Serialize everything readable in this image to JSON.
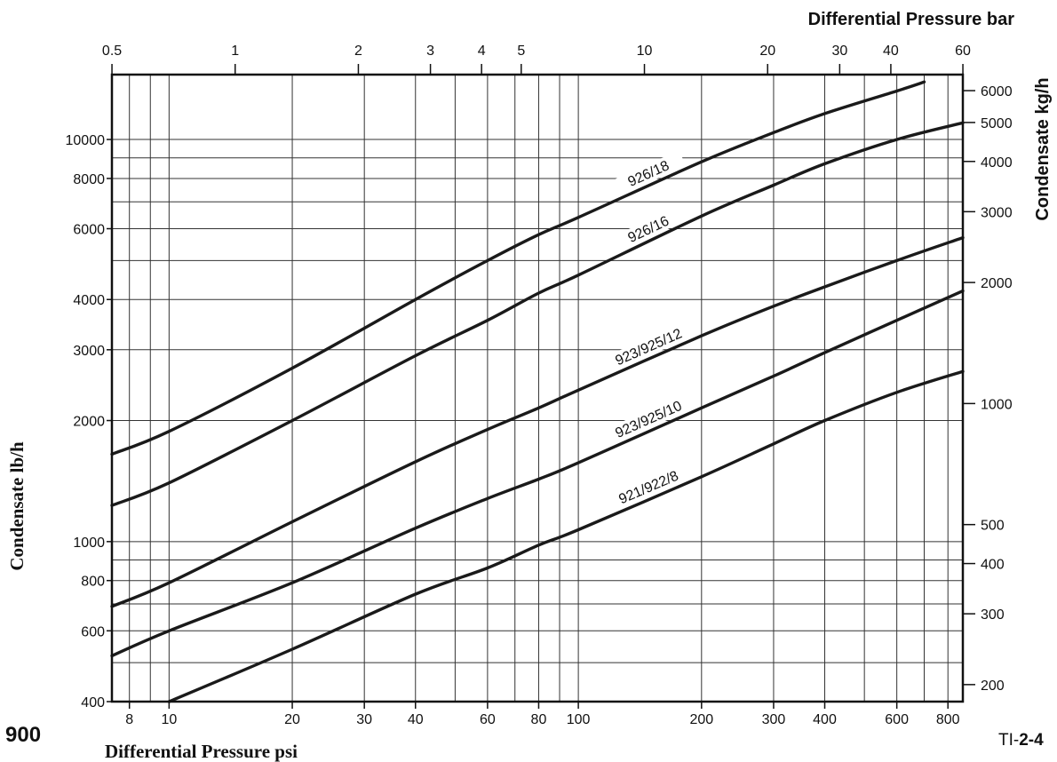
{
  "page": {
    "model_number": "900",
    "reference": "TI-2-4",
    "reference_prefix": "TI-",
    "reference_suffix": "2-4"
  },
  "chart_data": {
    "type": "line",
    "title": "",
    "top_axis": {
      "label": "Differential Pressure bar",
      "scale": "log",
      "range": [
        0.5,
        60
      ],
      "ticks": [
        0.5,
        1,
        2,
        3,
        4,
        5,
        10,
        20,
        30,
        40,
        60
      ],
      "tick_labels": [
        "0.5",
        "1",
        "2",
        "3",
        "4",
        "5",
        "10",
        "20",
        "30",
        "40",
        "60"
      ]
    },
    "bottom_axis": {
      "label": "Differential Pressure psi",
      "scale": "log",
      "range": [
        7.25,
        870
      ],
      "ticks": [
        8,
        10,
        20,
        30,
        40,
        60,
        80,
        100,
        200,
        300,
        400,
        600,
        800
      ],
      "tick_labels": [
        "8",
        "10",
        "20",
        "30",
        "40",
        "60",
        "80",
        "100",
        "200",
        "300",
        "400",
        "600",
        "800"
      ]
    },
    "left_axis": {
      "label": "Condensate lb/h",
      "scale": "log",
      "range": [
        400,
        14500
      ],
      "ticks": [
        400,
        600,
        800,
        1000,
        2000,
        3000,
        4000,
        6000,
        8000,
        10000
      ],
      "tick_labels": [
        "400",
        "600",
        "800",
        "1000",
        "2000",
        "3000",
        "4000",
        "6000",
        "8000",
        "10000"
      ]
    },
    "right_axis": {
      "label": "Condensate kg/h",
      "scale": "log",
      "ticks": [
        200,
        300,
        400,
        500,
        1000,
        2000,
        3000,
        4000,
        5000,
        6000
      ],
      "tick_labels": [
        "200",
        "300",
        "400",
        "500",
        "1000",
        "2000",
        "3000",
        "4000",
        "5000",
        "6000"
      ]
    },
    "grid": true,
    "x_units": "psi",
    "y_units": "lb/h",
    "series": [
      {
        "name": "926/18",
        "x": [
          7.25,
          10,
          20,
          40,
          60,
          80,
          100,
          200,
          300,
          400,
          600,
          700
        ],
        "y": [
          1650,
          1880,
          2700,
          4000,
          5000,
          5800,
          6400,
          8800,
          10400,
          11600,
          13200,
          13900
        ]
      },
      {
        "name": "926/16",
        "x": [
          7.25,
          10,
          20,
          40,
          60,
          80,
          100,
          200,
          300,
          400,
          600,
          870
        ],
        "y": [
          1230,
          1400,
          2000,
          2900,
          3550,
          4150,
          4600,
          6450,
          7700,
          8700,
          10000,
          11000
        ]
      },
      {
        "name": "923/925/12",
        "x": [
          7.25,
          10,
          20,
          40,
          60,
          80,
          100,
          200,
          300,
          400,
          600,
          870
        ],
        "y": [
          690,
          790,
          1120,
          1580,
          1900,
          2150,
          2380,
          3250,
          3850,
          4300,
          5000,
          5700
        ]
      },
      {
        "name": "923/925/10",
        "x": [
          7.25,
          10,
          20,
          40,
          60,
          80,
          100,
          200,
          300,
          400,
          600,
          870
        ],
        "y": [
          520,
          600,
          790,
          1080,
          1280,
          1430,
          1570,
          2150,
          2580,
          2950,
          3550,
          4200
        ]
      },
      {
        "name": "921/922/8",
        "x": [
          10,
          20,
          40,
          60,
          80,
          100,
          200,
          300,
          400,
          600,
          870
        ],
        "y": [
          400,
          540,
          740,
          860,
          980,
          1070,
          1450,
          1750,
          2000,
          2350,
          2650
        ]
      }
    ]
  }
}
